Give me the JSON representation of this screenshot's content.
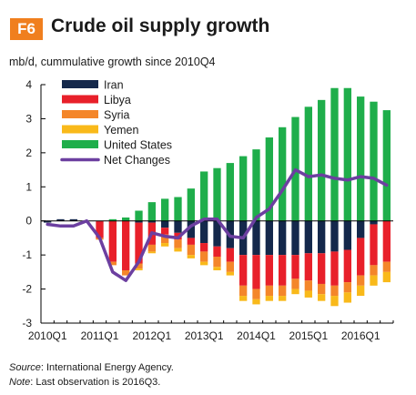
{
  "header": {
    "badge": "F6",
    "title": "Crude oil supply growth"
  },
  "footer": {
    "source_label": "Source",
    "source_text": ": International Energy Agency.",
    "note_label": "Note",
    "note_text": ": Last observation is 2016Q3."
  },
  "chart_data": {
    "type": "bar",
    "stacked": true,
    "ylabel": "mb/d, cummulative growth since 2010Q4",
    "ylim": [
      -3,
      4
    ],
    "yticks": [
      -3,
      -2,
      -1,
      0,
      1,
      2,
      3,
      4
    ],
    "x_tick_labels": [
      "2010Q1",
      "2011Q1",
      "2012Q1",
      "2013Q1",
      "2014Q1",
      "2015Q1",
      "2016Q1"
    ],
    "categories": [
      "2010Q1",
      "2010Q2",
      "2010Q3",
      "2010Q4",
      "2011Q1",
      "2011Q2",
      "2011Q3",
      "2011Q4",
      "2012Q1",
      "2012Q2",
      "2012Q3",
      "2012Q4",
      "2013Q1",
      "2013Q2",
      "2013Q3",
      "2013Q4",
      "2014Q1",
      "2014Q2",
      "2014Q3",
      "2014Q4",
      "2015Q1",
      "2015Q2",
      "2015Q3",
      "2015Q4",
      "2016Q1",
      "2016Q2",
      "2016Q3"
    ],
    "legend_position": "top-left",
    "colors": {
      "Iran": "#14284b",
      "Libya": "#e8202a",
      "Syria": "#f4862a",
      "Yemen": "#f9b91a",
      "United States": "#1fae4b",
      "Net Changes": "#6c3fa0"
    },
    "series": [
      {
        "name": "Iran",
        "type": "bar",
        "values": [
          -0.05,
          0.05,
          0.05,
          0,
          0,
          0,
          0,
          -0.05,
          -0.05,
          -0.2,
          -0.35,
          -0.5,
          -0.65,
          -0.75,
          -0.8,
          -1.0,
          -1.0,
          -1.0,
          -1.0,
          -1.0,
          -0.95,
          -0.95,
          -0.9,
          -0.85,
          -0.5,
          -0.1,
          0
        ]
      },
      {
        "name": "Libya",
        "type": "bar",
        "values": [
          0,
          0,
          0,
          0,
          -0.5,
          -1.2,
          -1.45,
          -1.2,
          -0.65,
          -0.2,
          -0.2,
          -0.2,
          -0.25,
          -0.3,
          -0.4,
          -0.9,
          -1.0,
          -0.9,
          -0.9,
          -0.7,
          -0.8,
          -0.9,
          -1.0,
          -0.95,
          -1.1,
          -1.2,
          -1.2
        ]
      },
      {
        "name": "Syria",
        "type": "bar",
        "values": [
          0,
          0,
          0,
          0,
          -0.05,
          -0.1,
          -0.15,
          -0.15,
          -0.2,
          -0.25,
          -0.25,
          -0.3,
          -0.3,
          -0.3,
          -0.3,
          -0.3,
          -0.3,
          -0.3,
          -0.3,
          -0.3,
          -0.3,
          -0.3,
          -0.3,
          -0.3,
          -0.3,
          -0.3,
          -0.3
        ]
      },
      {
        "name": "Yemen",
        "type": "bar",
        "values": [
          0,
          0,
          0,
          0,
          0,
          0,
          0,
          -0.05,
          -0.05,
          -0.1,
          -0.1,
          -0.1,
          -0.1,
          -0.1,
          -0.1,
          -0.15,
          -0.15,
          -0.15,
          -0.15,
          -0.15,
          -0.2,
          -0.2,
          -0.3,
          -0.3,
          -0.3,
          -0.3,
          -0.3
        ]
      },
      {
        "name": "United States",
        "type": "bar",
        "values": [
          0,
          0,
          0,
          0,
          0,
          0.05,
          0.1,
          0.3,
          0.55,
          0.65,
          0.7,
          0.95,
          1.45,
          1.55,
          1.7,
          1.9,
          2.1,
          2.45,
          2.75,
          3.05,
          3.35,
          3.55,
          3.9,
          3.9,
          3.65,
          3.5,
          3.25
        ]
      },
      {
        "name": "Net Changes",
        "type": "line",
        "values": [
          -0.1,
          -0.15,
          -0.15,
          0,
          -0.5,
          -1.5,
          -1.75,
          -1.2,
          -0.35,
          -0.45,
          -0.5,
          -0.15,
          0.05,
          0.05,
          -0.45,
          -0.5,
          0.1,
          0.35,
          0.9,
          1.5,
          1.3,
          1.35,
          1.25,
          1.2,
          1.3,
          1.25,
          1.05
        ]
      }
    ]
  }
}
